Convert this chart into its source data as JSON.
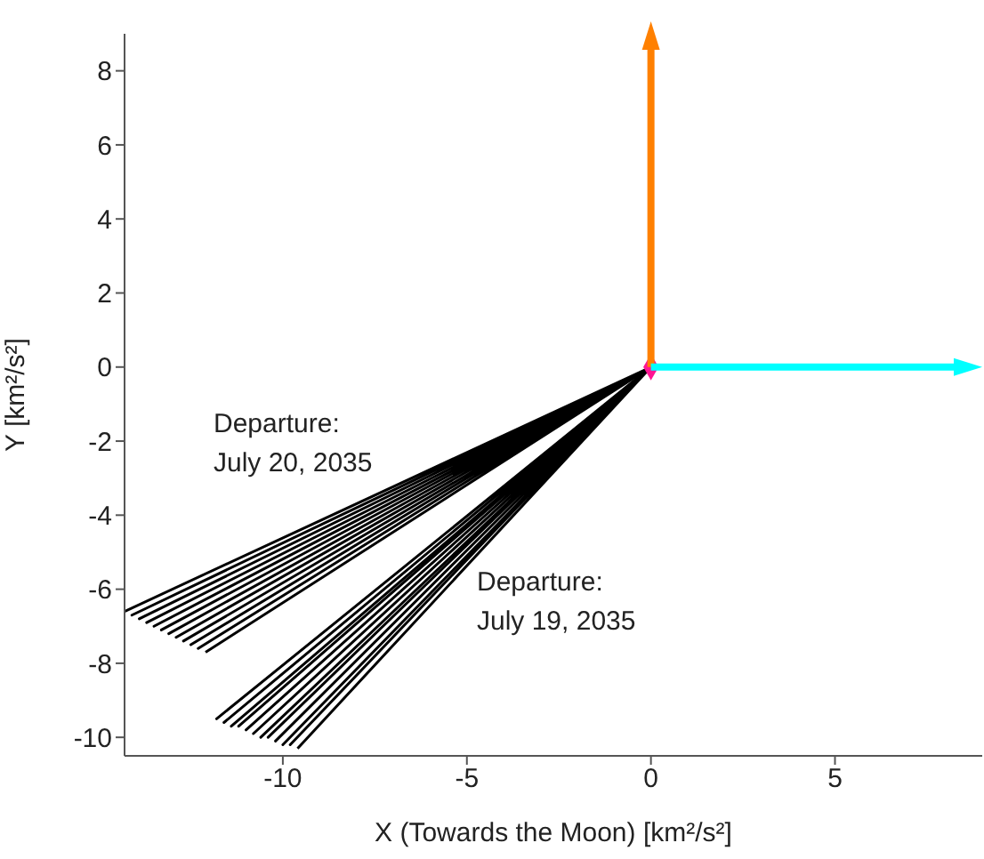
{
  "chart_data": {
    "type": "line",
    "xlabel": "X (Towards the Moon) [km²/s²]",
    "ylabel": "Y [km²/s²]",
    "xlim": [
      -14.3,
      9
    ],
    "ylim": [
      -10.5,
      9
    ],
    "xticks": [
      -10,
      -5,
      0,
      5
    ],
    "yticks": [
      -10,
      -8,
      -6,
      -4,
      -2,
      0,
      2,
      4,
      6,
      8
    ],
    "line_style": "solid",
    "series": [
      {
        "color": "#000000",
        "x": [
          0,
          -14.3,
          0,
          -14.1,
          0,
          -13.9,
          0,
          -13.7,
          0,
          -13.5,
          0,
          -13.3,
          0,
          -13.1,
          0,
          -12.9,
          0,
          -12.7,
          0,
          -12.5,
          0,
          -12.3,
          0,
          -12.1
        ],
        "values": [
          0,
          -6.6,
          0,
          -6.7,
          0,
          -6.8,
          0,
          -6.9,
          0,
          -7.0,
          0,
          -7.1,
          0,
          -7.2,
          0,
          -7.3,
          0,
          -7.4,
          0,
          -7.5,
          0,
          -7.6,
          0,
          -7.7
        ]
      },
      {
        "color": "#000000",
        "x": [
          0,
          -11.8,
          0,
          -11.6,
          0,
          -11.4,
          0,
          -11.2,
          0,
          -11.0,
          0,
          -10.8,
          0,
          -10.6,
          0,
          -10.4,
          0,
          -10.2,
          0,
          -10.0,
          0,
          -9.8,
          0,
          -9.6
        ],
        "values": [
          0,
          -9.5,
          0,
          -9.6,
          0,
          -9.7,
          0,
          -9.7,
          0,
          -9.8,
          0,
          -9.9,
          0,
          -10.0,
          0,
          -10.0,
          0,
          -10.1,
          0,
          -10.2,
          0,
          -10.2,
          0,
          -10.3
        ]
      },
      {
        "type": "scatter",
        "color": "#ff1493",
        "x": [
          0
        ],
        "values": [
          0
        ]
      }
    ],
    "annotations": [
      "Departure:\nJuly 20, 2035",
      "Departure:\nJuly 19, 2035"
    ]
  }
}
